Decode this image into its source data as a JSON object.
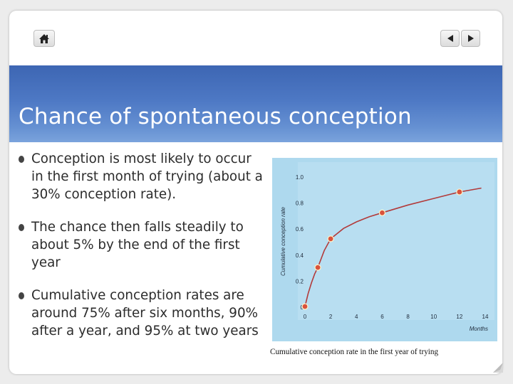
{
  "slide": {
    "title": "Chance of spontaneous conception",
    "bullets": [
      "Conception is most likely to occur in the first month of trying (about a 30% conception rate).",
      "The chance then falls steadily to about 5% by the end of the first year",
      "Cumulative conception rates are around 75% after six months, 90% after a year, and 95% at two years"
    ]
  },
  "nav": {
    "home_icon": "home-icon",
    "prev_icon": "triangle-left-icon",
    "next_icon": "triangle-right-icon"
  },
  "colors": {
    "banner": "#4d78c4",
    "chart_bg": "#a8d8ee",
    "marker": "#d9523d"
  },
  "figure": {
    "caption": "Cumulative conception rate in the first year of trying"
  },
  "chart_data": {
    "type": "line",
    "ylabel": "Cumulative conception rate",
    "xlabel": "Months",
    "xlim": [
      0,
      14
    ],
    "ylim": [
      0,
      1.0
    ],
    "x_ticks": [
      "0",
      "2",
      "4",
      "6",
      "8",
      "10",
      "12",
      "14"
    ],
    "y_ticks": [
      "0",
      "0.2",
      "0.4",
      "0.6",
      "0.8",
      "1.0"
    ],
    "points": {
      "x": [
        0,
        1,
        2,
        6,
        12
      ],
      "y": [
        0,
        0.3,
        0.52,
        0.72,
        0.88
      ]
    },
    "curve": {
      "x": [
        0,
        0.25,
        0.5,
        0.75,
        1,
        1.5,
        2,
        3,
        4,
        5,
        6,
        8,
        10,
        12,
        13.7
      ],
      "y": [
        0,
        0.1,
        0.18,
        0.25,
        0.3,
        0.43,
        0.52,
        0.6,
        0.65,
        0.69,
        0.72,
        0.78,
        0.83,
        0.88,
        0.91
      ]
    }
  }
}
